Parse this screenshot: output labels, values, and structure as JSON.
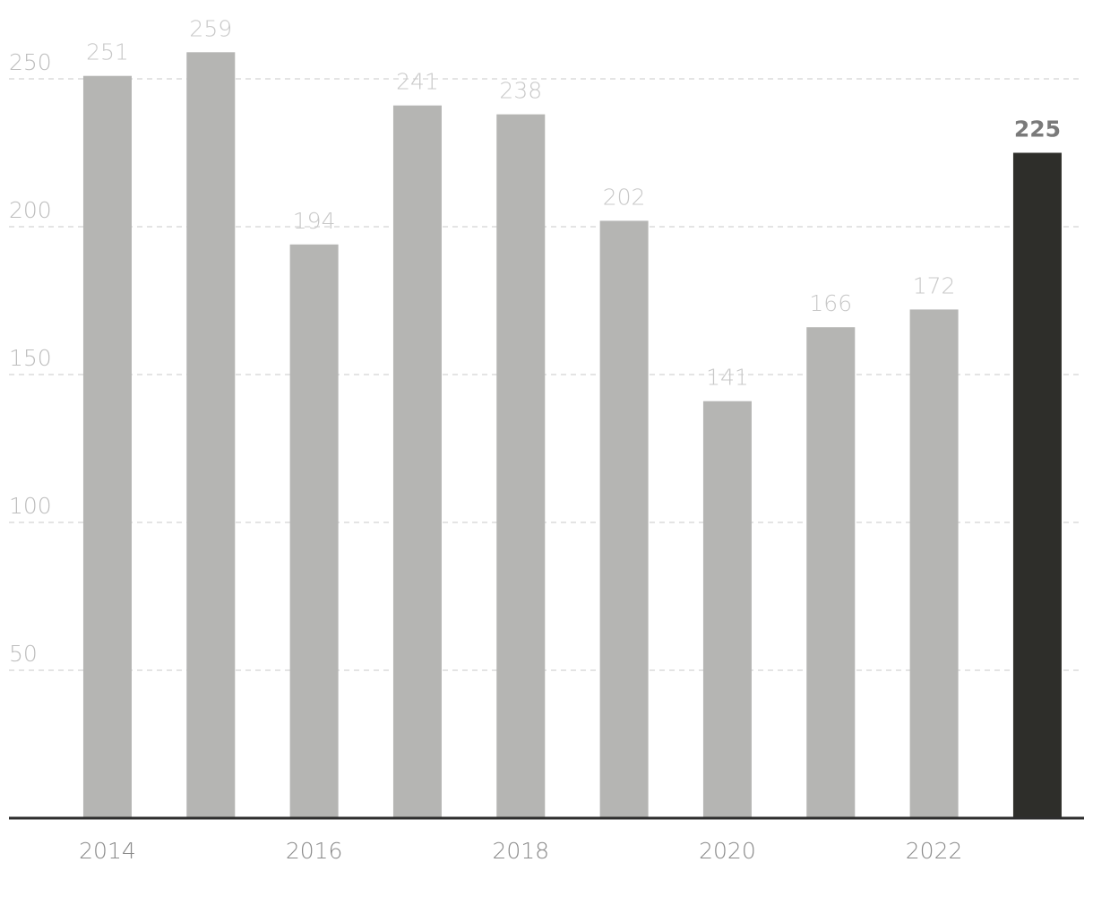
{
  "chart_data": {
    "type": "bar",
    "categories": [
      "2014",
      null,
      "2016",
      null,
      "2018",
      null,
      "2020",
      null,
      "2022",
      null
    ],
    "values": [
      251,
      259,
      194,
      241,
      238,
      202,
      141,
      166,
      172,
      225
    ],
    "colors": [
      "#b5b5b3",
      "#b5b5b3",
      "#b5b5b3",
      "#b5b5b3",
      "#b5b5b3",
      "#b5b5b3",
      "#b5b5b3",
      "#b5b5b3",
      "#b5b5b3",
      "#2e2e2a"
    ],
    "ylim": [
      0,
      270
    ],
    "yticks": [
      50,
      100,
      150,
      200,
      250
    ],
    "grid": true
  }
}
